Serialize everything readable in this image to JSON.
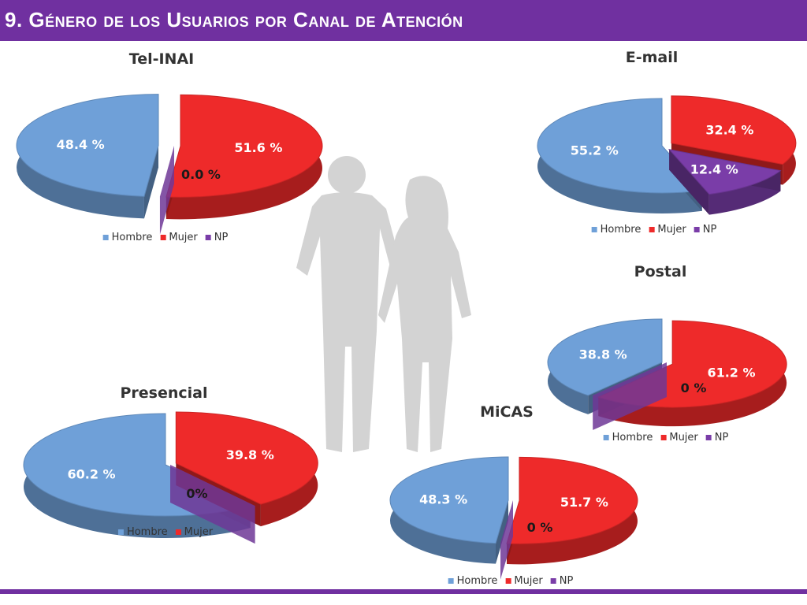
{
  "header": {
    "title": "9. Género de los Usuarios por Canal de Atención"
  },
  "colors": {
    "hombre": "#6fa0d8",
    "mujer": "#ee2a2a",
    "np": "#7a3da8",
    "header": "#7030a0",
    "silhouette": "#d3d3d3"
  },
  "chart_data": [
    {
      "type": "pie",
      "title": "Tel-INAI",
      "categories": [
        "Hombre",
        "Mujer",
        "NP"
      ],
      "values": [
        48.4,
        51.6,
        0.0
      ],
      "labels": [
        "48.4 %",
        "51.6 %",
        "0.0 %"
      ],
      "legend": [
        "Hombre",
        "Mujer",
        "NP"
      ],
      "legend_position": "bottom"
    },
    {
      "type": "pie",
      "title": "E-mail",
      "categories": [
        "Hombre",
        "Mujer",
        "NP"
      ],
      "values": [
        55.2,
        32.4,
        12.4
      ],
      "labels": [
        "55.2 %",
        "32.4 %",
        "12.4 %"
      ],
      "legend": [
        "Hombre",
        "Mujer",
        "NP"
      ],
      "legend_position": "bottom"
    },
    {
      "type": "pie",
      "title": "Postal",
      "categories": [
        "Hombre",
        "Mujer",
        "NP"
      ],
      "values": [
        38.8,
        61.2,
        0
      ],
      "labels": [
        "38.8 %",
        "61.2 %",
        "0 %"
      ],
      "legend": [
        "Hombre",
        "Mujer",
        "NP"
      ],
      "legend_position": "bottom"
    },
    {
      "type": "pie",
      "title": "Presencial",
      "categories": [
        "Hombre",
        "Mujer",
        "NP"
      ],
      "values": [
        60.2,
        39.8,
        0
      ],
      "labels": [
        "60.2 %",
        "39.8 %",
        "0%"
      ],
      "legend": [
        "Hombre",
        "Mujer"
      ],
      "legend_position": "bottom"
    },
    {
      "type": "pie",
      "title": "MiCAS",
      "categories": [
        "Hombre",
        "Mujer",
        "NP"
      ],
      "values": [
        48.3,
        51.7,
        0
      ],
      "labels": [
        "48.3 %",
        "51.7 %",
        "0 %"
      ],
      "legend": [
        "Hombre",
        "Mujer",
        "NP"
      ],
      "legend_position": "bottom"
    }
  ]
}
